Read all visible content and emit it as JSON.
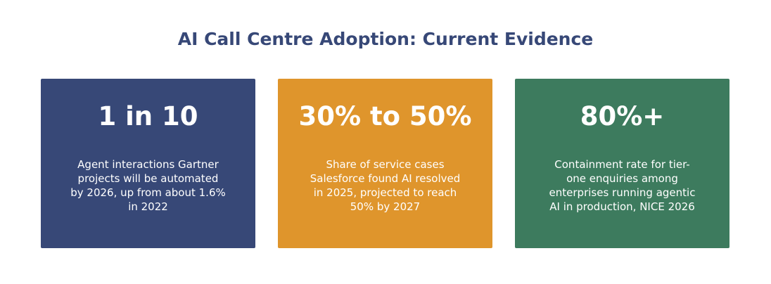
{
  "title": "AI Call Centre Adoption: Current Evidence",
  "cards": [
    {
      "stat": "1 in 10",
      "lines": [
        "Agent interactions Gartner",
        "projects will be automated",
        "by 2026, up from about 1.6%",
        "in 2022"
      ],
      "color": "#374877"
    },
    {
      "stat": "30% to 50%",
      "lines": [
        "Share of service cases",
        "Salesforce found AI resolved",
        "in 2025, projected to reach",
        "50% by 2027"
      ],
      "color": "#df952c"
    },
    {
      "stat": "80%+",
      "lines": [
        "Containment rate for tier-",
        "one enquiries among",
        "enterprises running agentic",
        "AI in production, NICE 2026"
      ],
      "color": "#3d7b5e"
    }
  ],
  "title_color": "#374877"
}
